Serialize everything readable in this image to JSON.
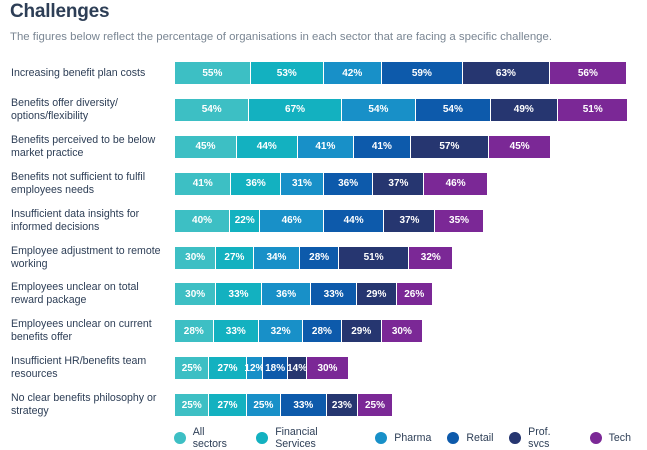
{
  "chart_data": {
    "type": "bar",
    "orientation": "horizontal",
    "stacked": true,
    "title": "Challenges",
    "subtitle": "The figures below reflect the percentage of organisations in each sector that are facing a specific challenge.",
    "xlabel": "",
    "ylabel": "",
    "value_suffix": "%",
    "grid": false,
    "legend_position": "bottom",
    "categories": [
      "Increasing benefit plan costs",
      "Benefits offer diversity/ options/flexibility",
      "Benefits perceived to be below market practice",
      "Benefits not sufficient to fulfil employees needs",
      "Insufficient data insights for informed decisions",
      "Employee adjustment to remote working",
      "Employees unclear on total reward package",
      "Employees unclear on current benefits offer",
      "Insufficient HR/benefits team resources",
      "No clear benefits philosophy or strategy"
    ],
    "series": [
      {
        "name": "All sectors",
        "color": "#3dbfc4",
        "values": [
          55,
          54,
          45,
          41,
          40,
          30,
          30,
          28,
          25,
          25
        ]
      },
      {
        "name": "Financial Services",
        "color": "#13b1c0",
        "values": [
          53,
          67,
          44,
          36,
          22,
          27,
          33,
          33,
          27,
          27
        ]
      },
      {
        "name": "Pharma",
        "color": "#1890c8",
        "values": [
          42,
          54,
          41,
          31,
          46,
          34,
          36,
          32,
          12,
          25
        ]
      },
      {
        "name": "Retail",
        "color": "#0d5aab",
        "values": [
          59,
          54,
          41,
          36,
          44,
          28,
          33,
          28,
          18,
          33
        ]
      },
      {
        "name": "Prof. svcs",
        "color": "#263670",
        "values": [
          63,
          49,
          57,
          37,
          37,
          51,
          29,
          29,
          14,
          23
        ]
      },
      {
        "name": "Tech",
        "color": "#7b2896",
        "values": [
          56,
          51,
          45,
          46,
          35,
          32,
          26,
          30,
          30,
          25
        ]
      }
    ]
  }
}
